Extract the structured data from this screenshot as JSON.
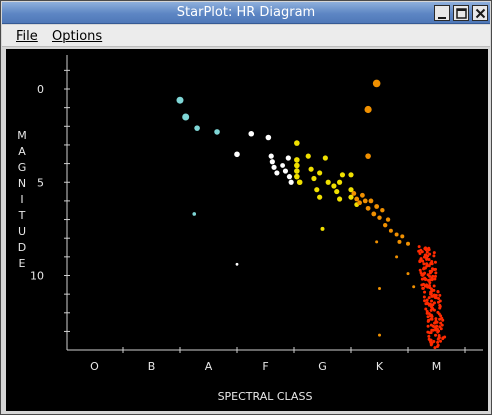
{
  "window": {
    "title": "StarPlot: HR Diagram"
  },
  "menu": {
    "file": "File",
    "options": "Options"
  },
  "icons": {
    "minimize": "minimize-icon",
    "maximize": "maximize-icon",
    "close": "close-icon"
  },
  "chart_data": {
    "type": "scatter",
    "xlabel": "SPECTRAL CLASS",
    "ylabel": "MAGNITUDE",
    "x_categories": [
      "O",
      "B",
      "A",
      "F",
      "G",
      "K",
      "M"
    ],
    "y_ticks": [
      0,
      5,
      10
    ],
    "ylim": [
      -2,
      14
    ],
    "y_inverted": true,
    "grid": false,
    "background": "#000000",
    "colors": {
      "A": "#7fd6d6",
      "F": "#ffffff",
      "G": "#f0e000",
      "K": "#f09000",
      "M": "#ff2a00",
      "axis": "#cfcfcf"
    },
    "points": [
      {
        "x": 1.5,
        "y": 0.6,
        "c": "A",
        "r": 3.5
      },
      {
        "x": 1.6,
        "y": 1.5,
        "c": "A",
        "r": 3.5
      },
      {
        "x": 1.8,
        "y": 2.1,
        "c": "A",
        "r": 2.8
      },
      {
        "x": 2.15,
        "y": 2.3,
        "c": "A",
        "r": 2.8
      },
      {
        "x": 1.75,
        "y": 6.7,
        "c": "A",
        "r": 1.8
      },
      {
        "x": 2.5,
        "y": 3.5,
        "c": "F",
        "r": 2.8
      },
      {
        "x": 2.75,
        "y": 2.4,
        "c": "F",
        "r": 2.8
      },
      {
        "x": 3.05,
        "y": 2.6,
        "c": "F",
        "r": 2.8
      },
      {
        "x": 3.1,
        "y": 3.6,
        "c": "F",
        "r": 2.6
      },
      {
        "x": 3.12,
        "y": 3.9,
        "c": "F",
        "r": 2.6
      },
      {
        "x": 3.15,
        "y": 4.2,
        "c": "F",
        "r": 2.6
      },
      {
        "x": 3.2,
        "y": 4.5,
        "c": "F",
        "r": 2.6
      },
      {
        "x": 3.35,
        "y": 4.4,
        "c": "F",
        "r": 2.6
      },
      {
        "x": 3.4,
        "y": 3.7,
        "c": "F",
        "r": 2.6
      },
      {
        "x": 3.42,
        "y": 4.7,
        "c": "F",
        "r": 2.6
      },
      {
        "x": 3.45,
        "y": 5.0,
        "c": "F",
        "r": 2.6
      },
      {
        "x": 3.3,
        "y": 4.1,
        "c": "F",
        "r": 2.4
      },
      {
        "x": 2.5,
        "y": 9.4,
        "c": "F",
        "r": 1.4
      },
      {
        "x": 3.55,
        "y": 2.9,
        "c": "G",
        "r": 2.8
      },
      {
        "x": 3.55,
        "y": 3.8,
        "c": "G",
        "r": 2.8
      },
      {
        "x": 3.55,
        "y": 4.1,
        "c": "G",
        "r": 2.8
      },
      {
        "x": 3.55,
        "y": 4.4,
        "c": "G",
        "r": 2.8
      },
      {
        "x": 3.55,
        "y": 4.7,
        "c": "G",
        "r": 2.8
      },
      {
        "x": 3.6,
        "y": 5.0,
        "c": "G",
        "r": 2.8
      },
      {
        "x": 3.75,
        "y": 3.6,
        "c": "G",
        "r": 2.6
      },
      {
        "x": 3.8,
        "y": 4.3,
        "c": "G",
        "r": 2.6
      },
      {
        "x": 3.85,
        "y": 4.8,
        "c": "G",
        "r": 2.6
      },
      {
        "x": 3.9,
        "y": 5.4,
        "c": "G",
        "r": 2.6
      },
      {
        "x": 3.95,
        "y": 4.5,
        "c": "G",
        "r": 2.6
      },
      {
        "x": 3.95,
        "y": 5.8,
        "c": "G",
        "r": 2.6
      },
      {
        "x": 4.05,
        "y": 3.7,
        "c": "G",
        "r": 2.6
      },
      {
        "x": 4.1,
        "y": 5.0,
        "c": "G",
        "r": 2.6
      },
      {
        "x": 4.2,
        "y": 5.2,
        "c": "G",
        "r": 2.6
      },
      {
        "x": 4.25,
        "y": 5.5,
        "c": "G",
        "r": 2.6
      },
      {
        "x": 4.3,
        "y": 5.0,
        "c": "G",
        "r": 2.6
      },
      {
        "x": 4.3,
        "y": 5.9,
        "c": "G",
        "r": 2.6
      },
      {
        "x": 4.35,
        "y": 4.6,
        "c": "G",
        "r": 2.6
      },
      {
        "x": 4.0,
        "y": 7.5,
        "c": "G",
        "r": 2.0
      },
      {
        "x": 4.5,
        "y": 4.6,
        "c": "G",
        "r": 2.6
      },
      {
        "x": 4.5,
        "y": 5.4,
        "c": "G",
        "r": 2.6
      },
      {
        "x": 4.5,
        "y": 5.8,
        "c": "G",
        "r": 2.6
      },
      {
        "x": 4.6,
        "y": 6.2,
        "c": "G",
        "r": 2.4
      },
      {
        "x": 4.55,
        "y": 5.6,
        "c": "K",
        "r": 2.4
      },
      {
        "x": 4.6,
        "y": 5.9,
        "c": "K",
        "r": 2.4
      },
      {
        "x": 4.65,
        "y": 6.1,
        "c": "K",
        "r": 2.4
      },
      {
        "x": 4.7,
        "y": 5.7,
        "c": "K",
        "r": 2.4
      },
      {
        "x": 4.75,
        "y": 6.0,
        "c": "K",
        "r": 2.4
      },
      {
        "x": 4.8,
        "y": 6.4,
        "c": "K",
        "r": 2.4
      },
      {
        "x": 4.85,
        "y": 6.0,
        "c": "K",
        "r": 2.4
      },
      {
        "x": 4.9,
        "y": 6.7,
        "c": "K",
        "r": 2.4
      },
      {
        "x": 4.95,
        "y": 6.3,
        "c": "K",
        "r": 2.4
      },
      {
        "x": 5.0,
        "y": 6.9,
        "c": "K",
        "r": 2.2
      },
      {
        "x": 5.05,
        "y": 6.5,
        "c": "K",
        "r": 2.2
      },
      {
        "x": 5.1,
        "y": 7.3,
        "c": "K",
        "r": 2.2
      },
      {
        "x": 5.15,
        "y": 7.0,
        "c": "K",
        "r": 2.2
      },
      {
        "x": 5.2,
        "y": 7.6,
        "c": "K",
        "r": 2.0
      },
      {
        "x": 5.3,
        "y": 7.8,
        "c": "K",
        "r": 2.0
      },
      {
        "x": 5.35,
        "y": 8.2,
        "c": "K",
        "r": 2.0
      },
      {
        "x": 5.4,
        "y": 7.9,
        "c": "K",
        "r": 2.0
      },
      {
        "x": 5.5,
        "y": 8.3,
        "c": "K",
        "r": 2.0
      },
      {
        "x": 4.95,
        "y": 8.2,
        "c": "K",
        "r": 1.5
      },
      {
        "x": 5.0,
        "y": 10.7,
        "c": "K",
        "r": 1.5
      },
      {
        "x": 5.0,
        "y": 13.2,
        "c": "K",
        "r": 1.5
      },
      {
        "x": 5.6,
        "y": 10.6,
        "c": "K",
        "r": 1.5
      },
      {
        "x": 4.95,
        "y": -0.3,
        "c": "K",
        "r": 3.8
      },
      {
        "x": 4.8,
        "y": 1.1,
        "c": "K",
        "r": 3.6
      },
      {
        "x": 4.8,
        "y": 3.6,
        "c": "K",
        "r": 2.8
      },
      {
        "x": 5.3,
        "y": 9.0,
        "c": "K",
        "r": 1.5
      },
      {
        "x": 5.5,
        "y": 9.9,
        "c": "K",
        "r": 1.5
      }
    ],
    "m_dwarfs": {
      "color": "M",
      "x_range": [
        5.75,
        6.15
      ],
      "y_start": 8.5,
      "y_end": 13.8,
      "count": 190
    }
  }
}
